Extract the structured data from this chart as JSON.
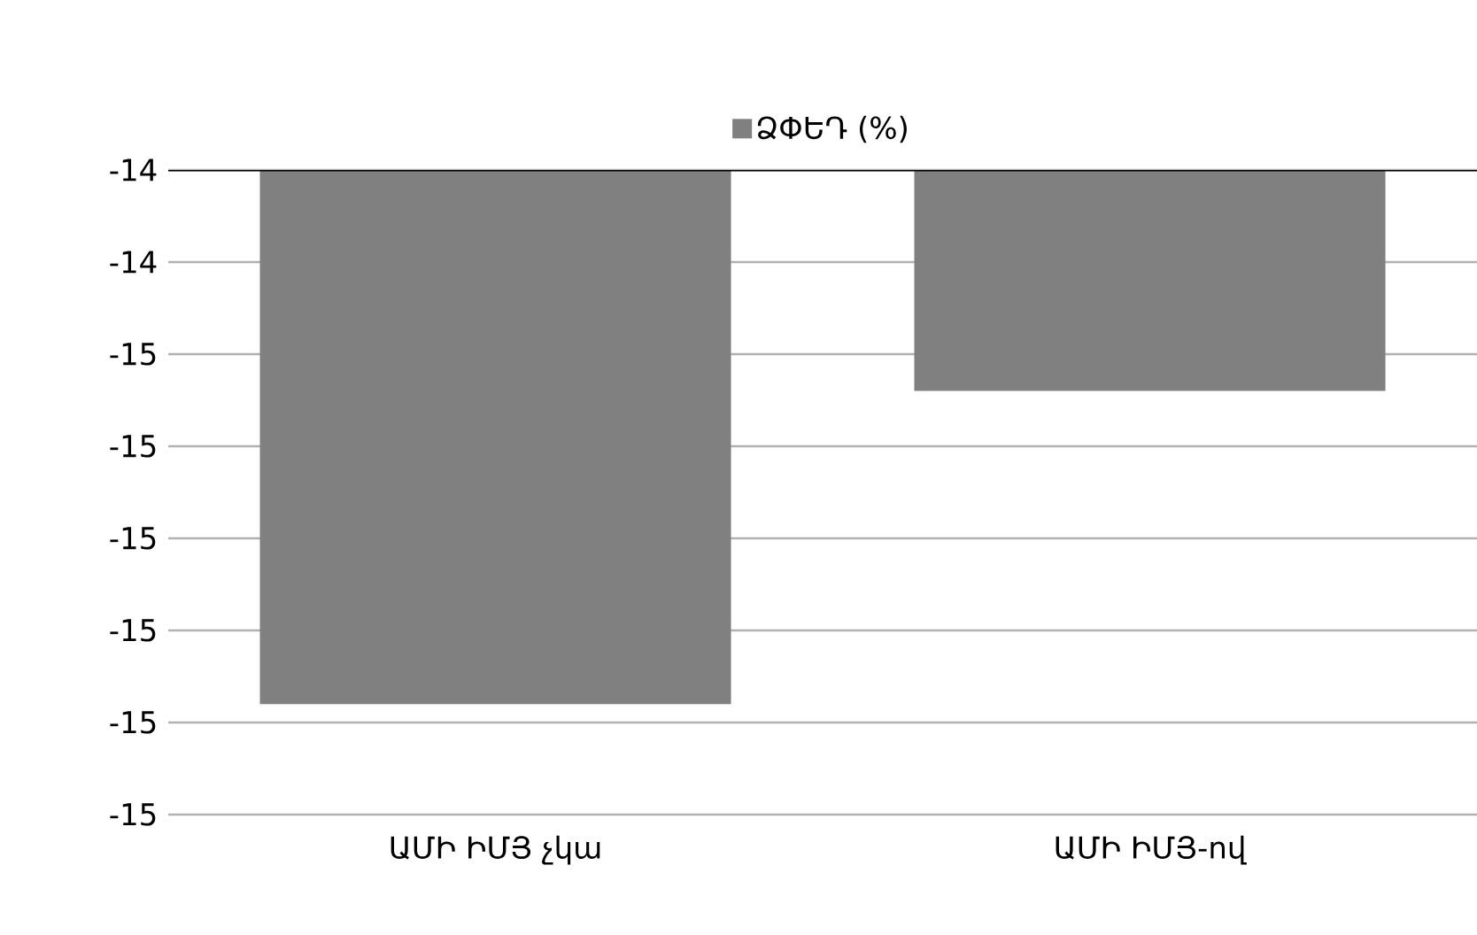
{
  "chart_data": {
    "type": "bar",
    "categories": [
      "ԱՄԻ ԻՄՅ չկա",
      "ԱՄԻ ԻՄՅ-ով"
    ],
    "series": [
      {
        "name": "ՁՓԵԴ (%)",
        "color": "#808080",
        "values": [
          -14.88,
          -14.54
        ]
      }
    ],
    "ylim": [
      -15.0,
      -14.3
    ],
    "yticks": [
      {
        "value": -15.0,
        "label": "-15"
      },
      {
        "value": -14.9,
        "label": "-15"
      },
      {
        "value": -14.8,
        "label": "-15"
      },
      {
        "value": -14.7,
        "label": "-15"
      },
      {
        "value": -14.6,
        "label": "-15"
      },
      {
        "value": -14.5,
        "label": "-15"
      },
      {
        "value": -14.4,
        "label": "-14"
      },
      {
        "value": -14.3,
        "label": "-14"
      }
    ],
    "grid": "y",
    "legend": "top"
  }
}
